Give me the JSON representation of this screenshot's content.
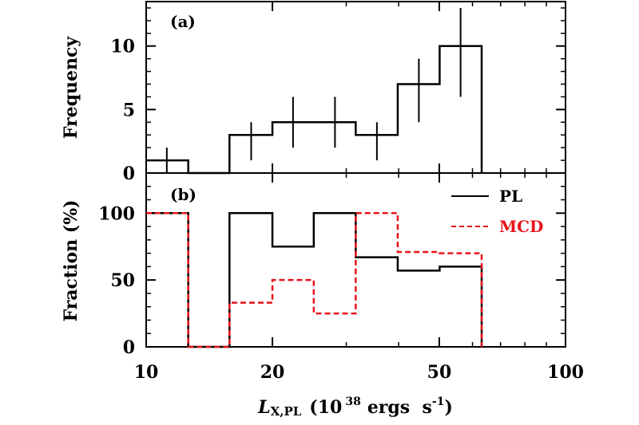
{
  "chart_data": [
    {
      "panel": "(a)",
      "type": "histogram",
      "xscale": "log",
      "xlim": [
        10,
        100
      ],
      "ylim": [
        0,
        13.5
      ],
      "ylabel": "Frequency",
      "yticks": [
        0,
        5,
        10
      ],
      "bin_edges": [
        10,
        12.6,
        15.8,
        20,
        25.1,
        31.6,
        39.8,
        50.1,
        63.1
      ],
      "values": [
        1,
        0,
        3,
        4,
        4,
        3,
        7,
        10
      ],
      "errors": [
        {
          "x": 11.2,
          "low": 0,
          "high": 2
        },
        {
          "x": 17.8,
          "low": 1,
          "high": 4
        },
        {
          "x": 22.4,
          "low": 2,
          "high": 6
        },
        {
          "x": 28.2,
          "low": 2,
          "high": 6
        },
        {
          "x": 35.5,
          "low": 1,
          "high": 4
        },
        {
          "x": 44.7,
          "low": 4,
          "high": 9
        },
        {
          "x": 56.2,
          "low": 6,
          "high": 13
        }
      ]
    },
    {
      "panel": "(b)",
      "type": "histogram",
      "xscale": "log",
      "xlim": [
        10,
        100
      ],
      "ylim": [
        0,
        130
      ],
      "ylabel": "Fraction (%)",
      "yticks": [
        0,
        50,
        100
      ],
      "bin_edges": [
        10,
        12.6,
        15.8,
        20,
        25.1,
        31.6,
        39.8,
        50.1,
        63.1
      ],
      "series": [
        {
          "name": "PL",
          "color": "#000000",
          "style": "solid",
          "values": [
            100,
            0,
            100,
            75,
            100,
            67,
            57,
            60
          ]
        },
        {
          "name": "MCD",
          "color": "#e8141b",
          "style": "dashed",
          "values": [
            100,
            0,
            33,
            50,
            25,
            100,
            71,
            70
          ]
        }
      ],
      "legend_position": "top-right"
    }
  ],
  "xticks": [
    10,
    20,
    50,
    100
  ],
  "xlabel": {
    "symbol": "L",
    "subscript": "X,PL",
    "unit_base": "(10",
    "unit_exp": "38",
    "unit_mid": "ergs  s",
    "unit_exp2": "-1",
    "unit_end": ")"
  }
}
